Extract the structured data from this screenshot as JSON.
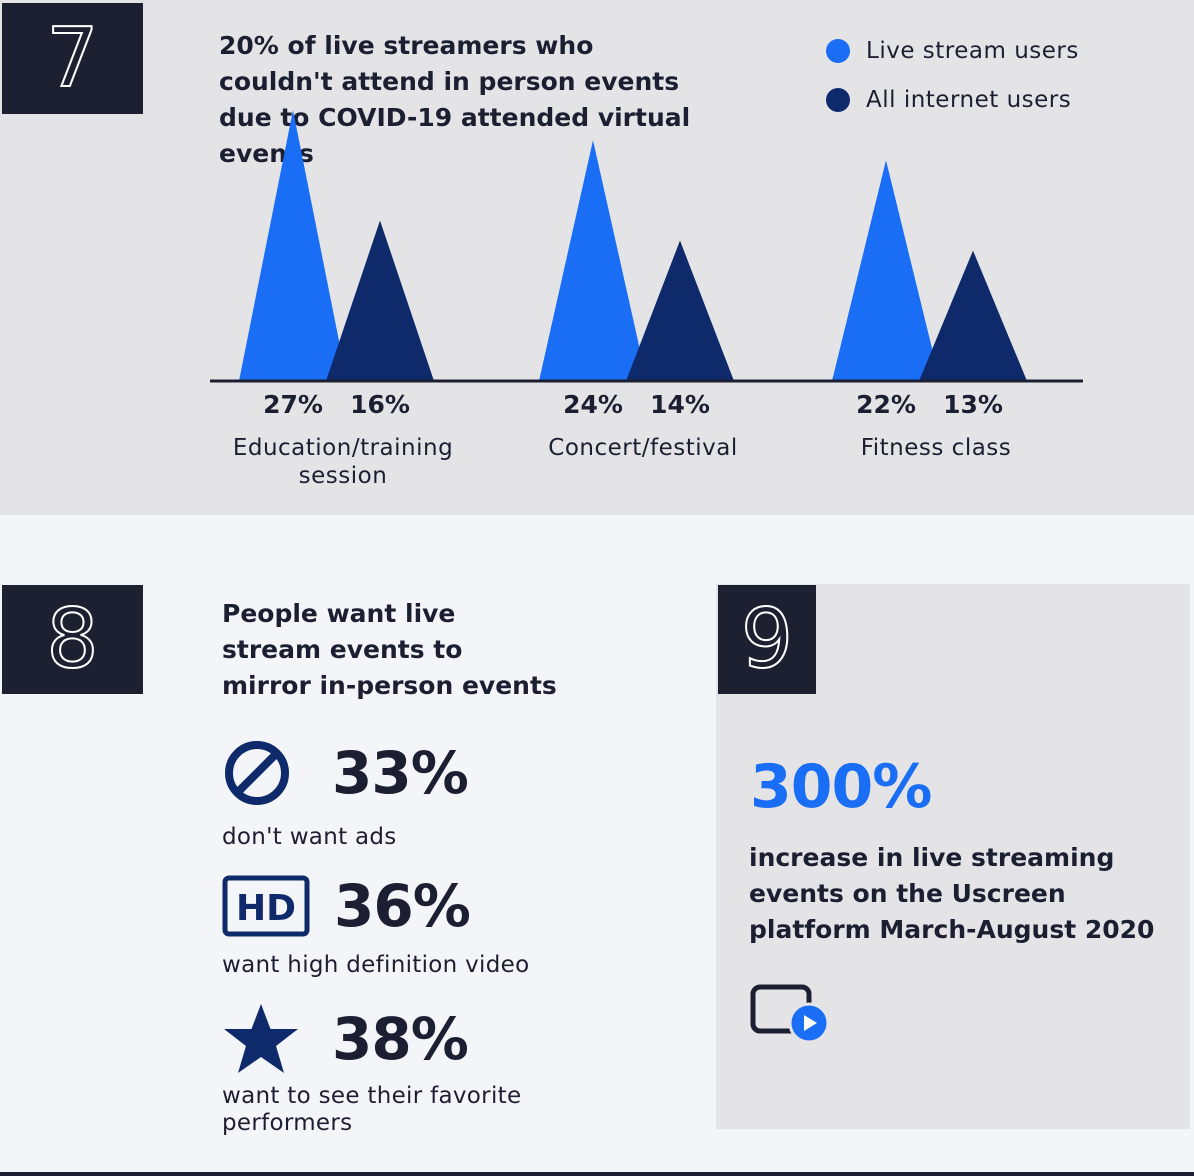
{
  "section7": {
    "number": "7",
    "title": "20% of live streamers who couldn't attend in person events due to COVID-19 attended virtual events",
    "legend": [
      {
        "label": "Live stream users",
        "color": "#1a6ef5"
      },
      {
        "label": "All internet users",
        "color": "#0e2a6b"
      }
    ]
  },
  "chart_data": {
    "type": "area",
    "title": "20% of live streamers who couldn't attend in person events due to COVID-19 attended virtual events",
    "categories": [
      "Education/training session",
      "Concert/festival",
      "Fitness class"
    ],
    "category_lines": [
      [
        "Education/training",
        "session"
      ],
      [
        "Concert/festival"
      ],
      [
        "Fitness class"
      ]
    ],
    "series": [
      {
        "name": "Live stream users",
        "color": "#1a6ef5",
        "values": [
          27,
          24,
          22
        ],
        "labels": [
          "27%",
          "24%",
          "22%"
        ]
      },
      {
        "name": "All internet users",
        "color": "#0e2a6b",
        "values": [
          16,
          14,
          13
        ],
        "labels": [
          "16%",
          "14%",
          "13%"
        ]
      }
    ],
    "unit": "%",
    "ylim": [
      0,
      30
    ],
    "grid": false,
    "legend_position": "top-right"
  },
  "section8": {
    "number": "8",
    "title_lines": [
      "People want live",
      "stream events to",
      "mirror in-person events"
    ],
    "stats": [
      {
        "icon": "no-ads-icon",
        "value": "33%",
        "caption": "don't want ads"
      },
      {
        "icon": "hd-icon",
        "icon_text": "HD",
        "value": "36%",
        "caption": "want high definition video"
      },
      {
        "icon": "star-icon",
        "value": "38%",
        "caption": "want to see their favorite performers"
      }
    ],
    "accent_color": "#0e2a6b"
  },
  "section9": {
    "number": "9",
    "value": "300%",
    "description": "increase in live streaming events on the Uscreen platform March-August 2020",
    "icon": "video-play-icon",
    "accent_color": "#1a6ef5"
  }
}
